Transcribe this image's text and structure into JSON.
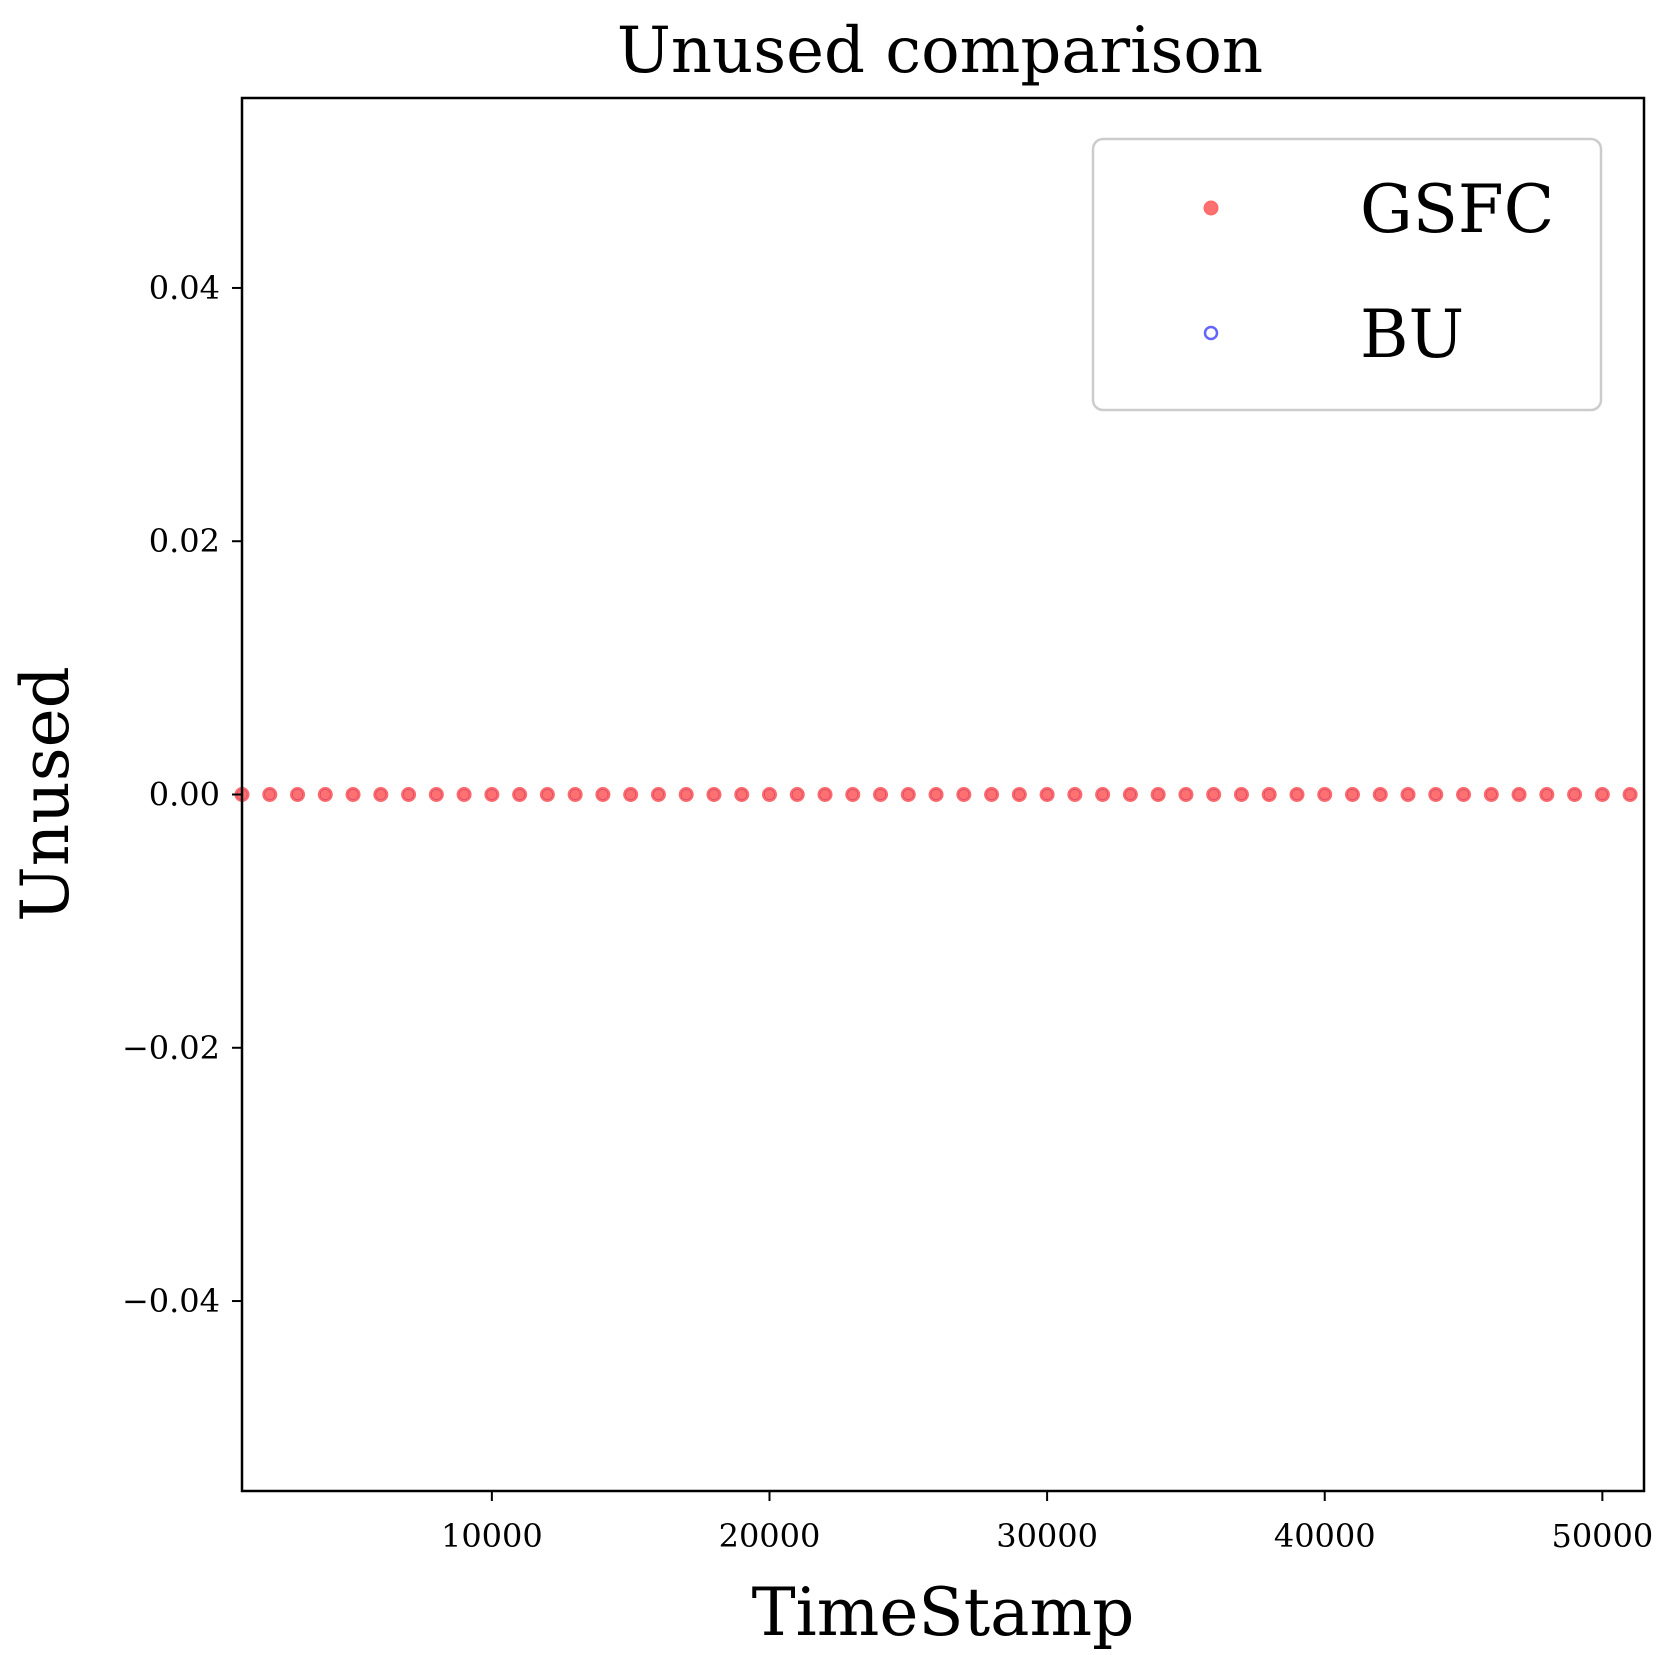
{
  "chart_data": {
    "type": "scatter",
    "title": "Unused comparison",
    "xlabel": "TimeStamp",
    "ylabel": "Unused",
    "xlim": [
      1000,
      51500
    ],
    "ylim": [
      -0.055,
      0.055
    ],
    "xticks": [
      10000,
      20000,
      30000,
      40000,
      50000
    ],
    "xtick_labels": [
      "10000",
      "20000",
      "30000",
      "40000",
      "50000"
    ],
    "yticks": [
      -0.04,
      -0.02,
      0.0,
      0.02,
      0.04
    ],
    "ytick_labels": [
      "−0.04",
      "−0.02",
      "0.00",
      "0.02",
      "0.04"
    ],
    "grid": false,
    "legend_position": "top-right",
    "series": [
      {
        "name": "GSFC",
        "color": "#ff4040",
        "marker": "filled-circle",
        "x": [
          1000,
          2000,
          3000,
          4000,
          5000,
          6000,
          7000,
          8000,
          9000,
          10000,
          11000,
          12000,
          13000,
          14000,
          15000,
          16000,
          17000,
          18000,
          19000,
          20000,
          21000,
          22000,
          23000,
          24000,
          25000,
          26000,
          27000,
          28000,
          29000,
          30000,
          31000,
          32000,
          33000,
          34000,
          35000,
          36000,
          37000,
          38000,
          39000,
          40000,
          41000,
          42000,
          43000,
          44000,
          45000,
          46000,
          47000,
          48000,
          49000,
          50000,
          51000
        ],
        "y": [
          0,
          0,
          0,
          0,
          0,
          0,
          0,
          0,
          0,
          0,
          0,
          0,
          0,
          0,
          0,
          0,
          0,
          0,
          0,
          0,
          0,
          0,
          0,
          0,
          0,
          0,
          0,
          0,
          0,
          0,
          0,
          0,
          0,
          0,
          0,
          0,
          0,
          0,
          0,
          0,
          0,
          0,
          0,
          0,
          0,
          0,
          0,
          0,
          0,
          0,
          0
        ]
      },
      {
        "name": "BU",
        "color": "#3030ff",
        "marker": "hollow-circle",
        "x": [
          1000,
          2000,
          3000,
          4000,
          5000,
          6000,
          7000,
          8000,
          9000,
          10000,
          11000,
          12000,
          13000,
          14000,
          15000,
          16000,
          17000,
          18000,
          19000,
          20000,
          21000,
          22000,
          23000,
          24000,
          25000,
          26000,
          27000,
          28000,
          29000,
          30000,
          31000,
          32000,
          33000,
          34000,
          35000,
          36000,
          37000,
          38000,
          39000,
          40000,
          41000,
          42000,
          43000,
          44000,
          45000,
          46000,
          47000,
          48000,
          49000,
          50000,
          51000
        ],
        "y": [
          0,
          0,
          0,
          0,
          0,
          0,
          0,
          0,
          0,
          0,
          0,
          0,
          0,
          0,
          0,
          0,
          0,
          0,
          0,
          0,
          0,
          0,
          0,
          0,
          0,
          0,
          0,
          0,
          0,
          0,
          0,
          0,
          0,
          0,
          0,
          0,
          0,
          0,
          0,
          0,
          0,
          0,
          0,
          0,
          0,
          0,
          0,
          0,
          0,
          0,
          0
        ]
      }
    ]
  }
}
